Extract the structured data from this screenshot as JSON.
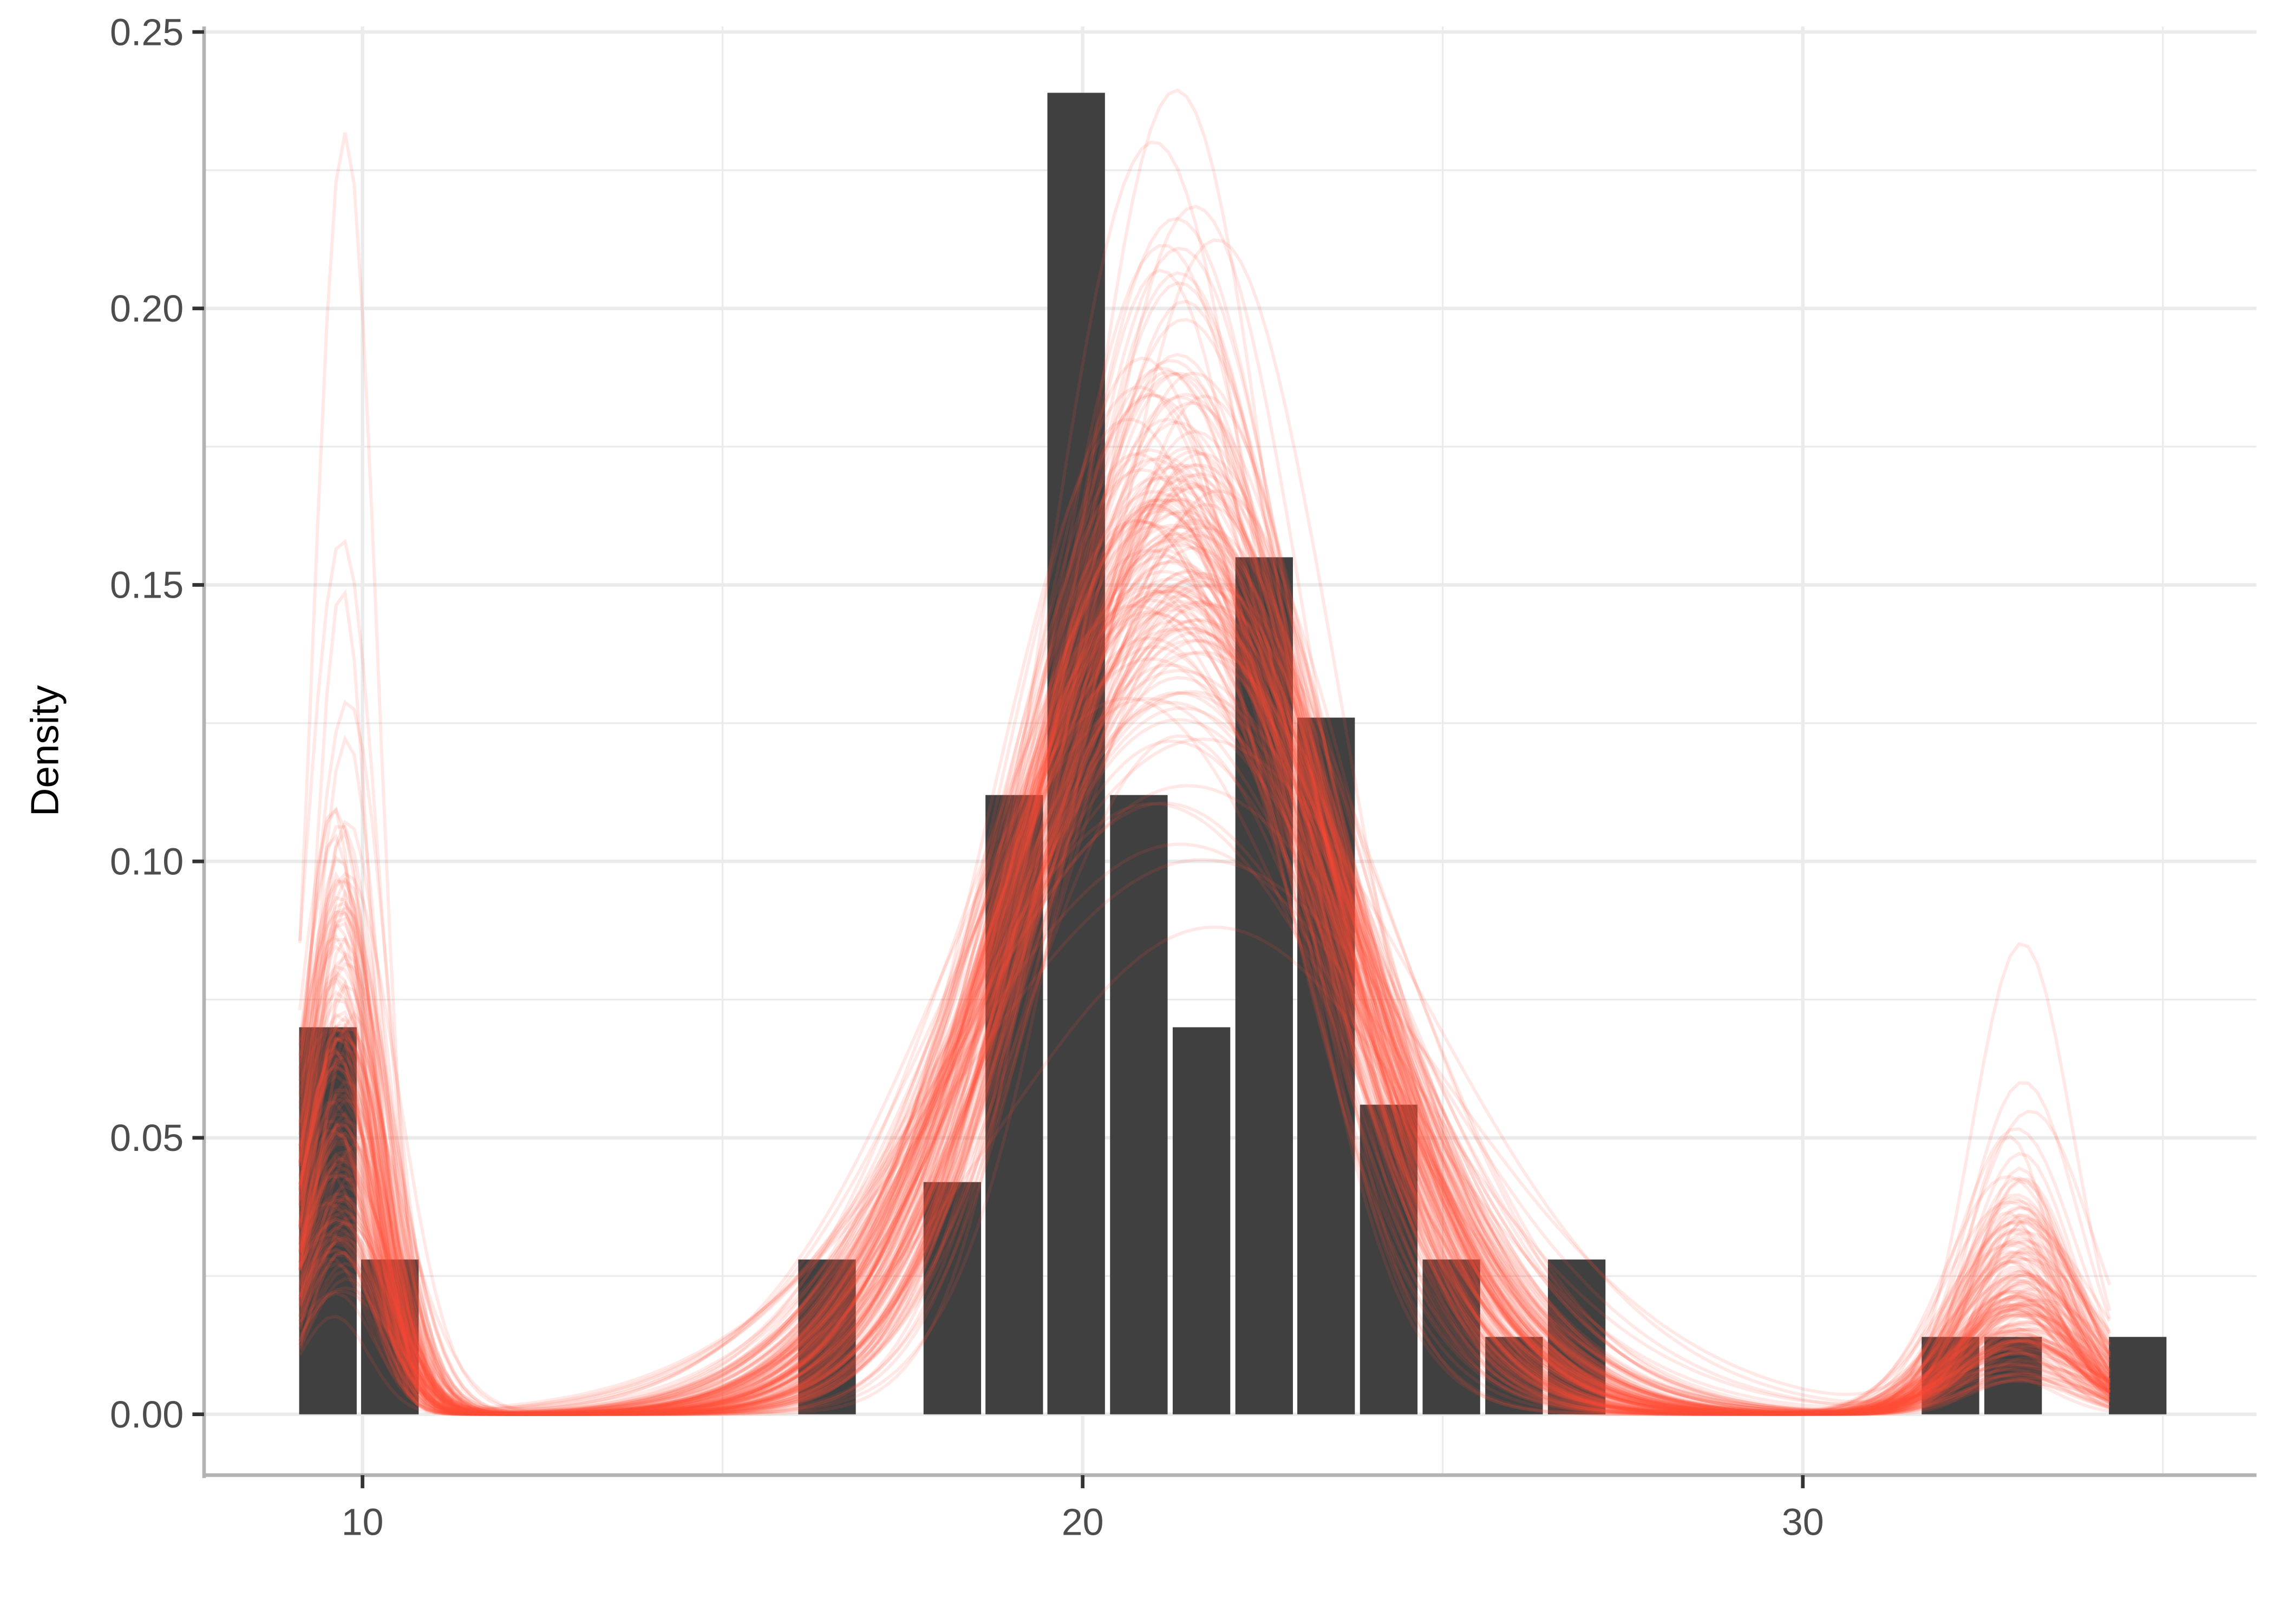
{
  "chart_data": {
    "type": "bar",
    "title": "",
    "xlabel": "",
    "ylabel": "Density",
    "xlim": [
      7.8,
      36.3
    ],
    "ylim": [
      -0.011,
      0.251
    ],
    "x_ticks": [
      10,
      20,
      30
    ],
    "x_tick_labels": [
      "10",
      "20",
      "30"
    ],
    "y_ticks": [
      0,
      0.05,
      0.1,
      0.15,
      0.2,
      0.25
    ],
    "y_tick_labels": [
      "0.00",
      "0.05",
      "0.10",
      "0.15",
      "0.20",
      "0.25"
    ],
    "grid": true,
    "bin_width": 0.86,
    "bars": [
      {
        "x": 9.52,
        "value": 0.07
      },
      {
        "x": 10.38,
        "value": 0.028
      },
      {
        "x": 16.45,
        "value": 0.028
      },
      {
        "x": 18.19,
        "value": 0.042
      },
      {
        "x": 19.05,
        "value": 0.112
      },
      {
        "x": 19.91,
        "value": 0.239
      },
      {
        "x": 20.78,
        "value": 0.112
      },
      {
        "x": 21.65,
        "value": 0.07
      },
      {
        "x": 22.52,
        "value": 0.155
      },
      {
        "x": 23.38,
        "value": 0.126
      },
      {
        "x": 24.25,
        "value": 0.056
      },
      {
        "x": 25.12,
        "value": 0.028
      },
      {
        "x": 25.99,
        "value": 0.014
      },
      {
        "x": 26.86,
        "value": 0.028
      },
      {
        "x": 32.05,
        "value": 0.014
      },
      {
        "x": 32.92,
        "value": 0.014
      },
      {
        "x": 34.65,
        "value": 0.014
      }
    ],
    "density_draws": {
      "count": 150,
      "x_range": [
        9.13,
        34.26
      ],
      "components": [
        {
          "mean": 9.7,
          "sd": 0.55,
          "weight": 0.08
        },
        {
          "mean": 21.3,
          "sd": 2.2,
          "weight": 0.88
        },
        {
          "mean": 33.0,
          "sd": 0.8,
          "weight": 0.04
        }
      ]
    },
    "colors": {
      "bar": "#404040",
      "density": "#ff4b33",
      "grid": "#ebebeb",
      "axis": "#b3b3b3"
    }
  }
}
